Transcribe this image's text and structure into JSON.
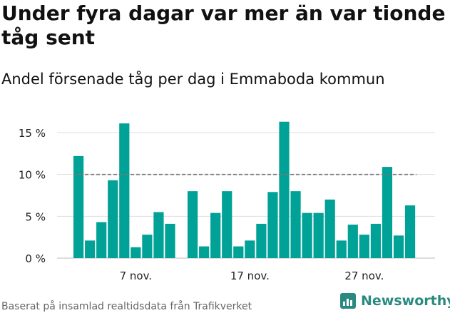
{
  "title": "Under fyra dagar var mer än var tionde tåg sent",
  "subtitle": "Andel försenade tåg per dag i Emmaboda kommun",
  "footer": "Baserat på insamlad realtidsdata från Trafikverket",
  "brand": {
    "name": "Newsworthy",
    "icon": "newsworthy-logo-icon"
  },
  "colors": {
    "bar": "#00a196",
    "reference_line": "#777777",
    "grid": "#dddddd",
    "text": "#111111",
    "brand": "#2a8a80"
  },
  "chart_data": {
    "type": "bar",
    "unit": "%",
    "ylim": [
      0,
      17
    ],
    "yticks": [
      0,
      5,
      10,
      15
    ],
    "ytick_labels": [
      "0 %",
      "5 %",
      "10 %",
      "15 %"
    ],
    "reference_line": 10,
    "grid": true,
    "series": [
      {
        "segment": 1,
        "values": [
          12.2,
          2.1,
          4.3,
          9.3,
          16.1,
          1.3,
          2.8,
          5.5,
          4.1
        ]
      },
      {
        "segment": 2,
        "values": [
          8.0,
          1.4,
          5.4,
          8.0,
          1.4,
          2.1,
          4.1,
          7.9,
          16.3,
          8.0,
          5.4,
          5.4,
          7.0,
          2.1,
          4.0,
          2.8,
          4.1,
          10.9,
          2.7,
          6.3
        ]
      }
    ],
    "x_tick_labels": [
      {
        "label": "7 nov.",
        "segment": 1,
        "index": 5
      },
      {
        "label": "17 nov.",
        "segment": 2,
        "index": 5
      },
      {
        "label": "27 nov.",
        "segment": 2,
        "index": 15
      }
    ]
  }
}
